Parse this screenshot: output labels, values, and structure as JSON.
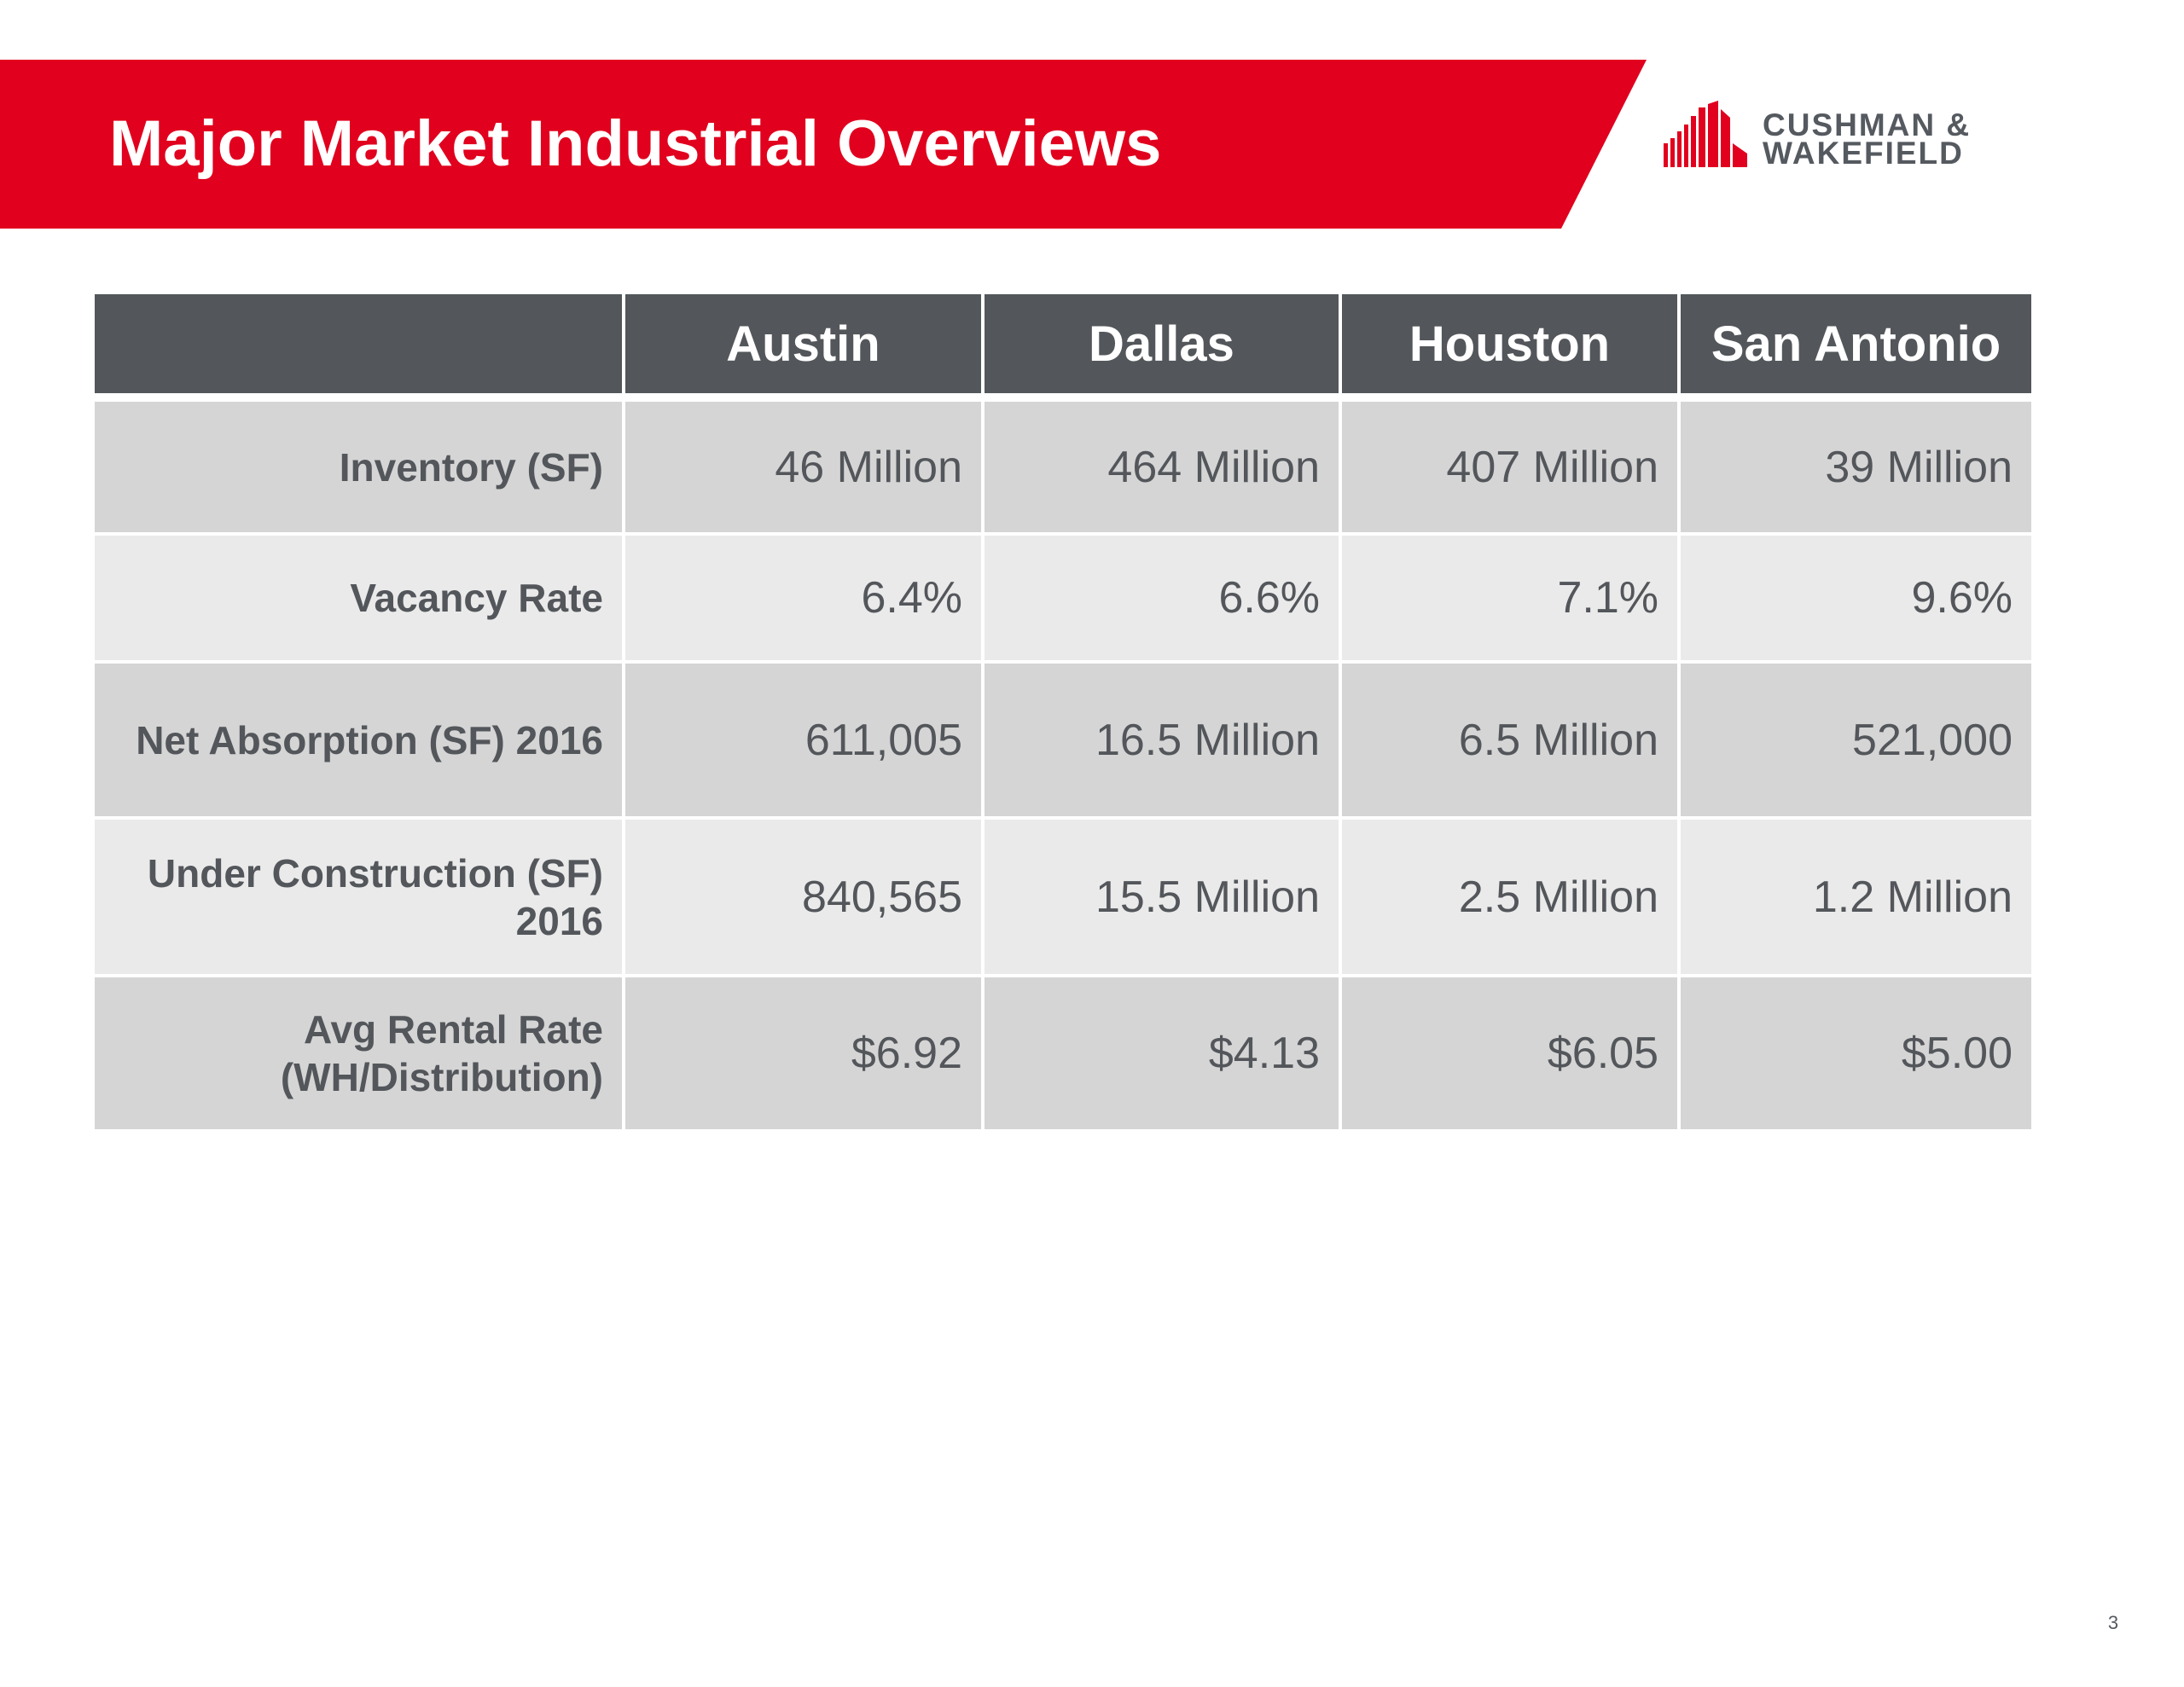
{
  "header": {
    "title": "Major Market Industrial Overviews",
    "accent_color": "#e1001e"
  },
  "logo": {
    "line1": "CUSHMAN &",
    "line2": "WAKEFIELD",
    "color": "#e1001e"
  },
  "table": {
    "columns": [
      "",
      "Austin",
      "Dallas",
      "Houston",
      "San Antonio"
    ],
    "header_color": "#53565a",
    "rows": [
      {
        "label": "Inventory (SF)",
        "values": [
          "46 Million",
          "464 Million",
          "407 Million",
          "39 Million"
        ]
      },
      {
        "label": "Vacancy Rate",
        "values": [
          "6.4%",
          "6.6%",
          "7.1%",
          "9.6%"
        ]
      },
      {
        "label": "Net Absorption (SF) 2016",
        "values": [
          "611,005",
          "16.5 Million",
          "6.5 Million",
          "521,000"
        ]
      },
      {
        "label": "Under Construction (SF) 2016",
        "values": [
          "840,565",
          "15.5 Million",
          "2.5 Million",
          "1.2 Million"
        ]
      },
      {
        "label": "Avg Rental Rate (WH/Distribution)",
        "values": [
          "$6.92",
          "$4.13",
          "$6.05",
          "$5.00"
        ]
      }
    ]
  },
  "footer": {
    "page_number": "3"
  }
}
